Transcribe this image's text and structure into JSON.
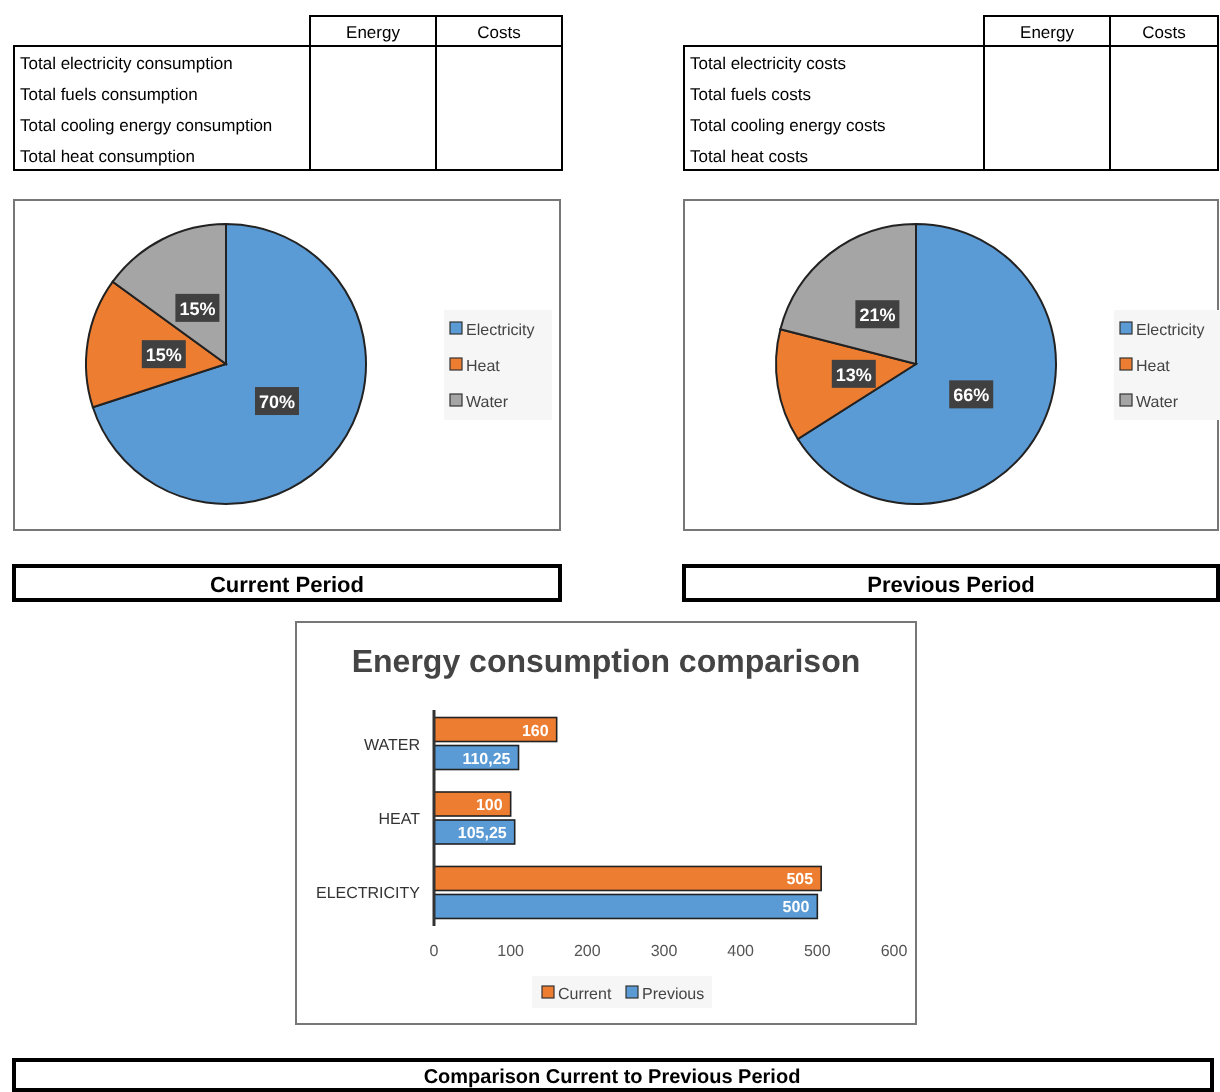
{
  "chart_data": [
    {
      "type": "other",
      "annotations": [
        "Energy",
        "Costs"
      ],
      "categories": [
        "Total electricity consumption",
        "Total fuels consumption",
        "Total cooling energy consumption",
        "Total heat consumption"
      ]
    },
    {
      "type": "other",
      "annotations": [
        "Energy",
        "Costs"
      ],
      "categories": [
        "Total electricity costs",
        "Total fuels costs",
        "Total cooling energy costs",
        "Total heat costs"
      ]
    },
    {
      "type": "pie",
      "title": "Current Period",
      "categories": [
        "Electricity",
        "Heat",
        "Water"
      ],
      "values": [
        70,
        15,
        15
      ],
      "value_labels": [
        "70%",
        "15%",
        "15%"
      ],
      "colors": [
        "#5b9bd5",
        "#ed7d31",
        "#a5a5a5"
      ],
      "legend": "right"
    },
    {
      "type": "pie",
      "title": "Previous Period",
      "categories": [
        "Electricity",
        "Heat",
        "Water"
      ],
      "values": [
        66,
        13,
        21
      ],
      "value_labels": [
        "66%",
        "13%",
        "21%"
      ],
      "colors": [
        "#5b9bd5",
        "#ed7d31",
        "#a5a5a5"
      ],
      "legend": "right"
    },
    {
      "type": "bar",
      "orientation": "horizontal",
      "title": "Energy consumption comparison",
      "categories": [
        "WATER",
        "HEAT",
        "ELECTRICITY"
      ],
      "series": [
        {
          "name": "Current",
          "color": "#ed7d31",
          "values": [
            160,
            100,
            505
          ],
          "value_labels": [
            "160",
            "100",
            "505"
          ]
        },
        {
          "name": "Previous",
          "color": "#5b9bd5",
          "values": [
            110.25,
            105.25,
            500
          ],
          "value_labels": [
            "110,25",
            "105,25",
            "500"
          ]
        }
      ],
      "xlim": [
        0,
        600
      ],
      "xticks": [
        0,
        100,
        200,
        300,
        400,
        500,
        600
      ],
      "grid": false,
      "legend": "bottom",
      "annotations": [
        "Comparison Current to Previous Period"
      ]
    }
  ]
}
